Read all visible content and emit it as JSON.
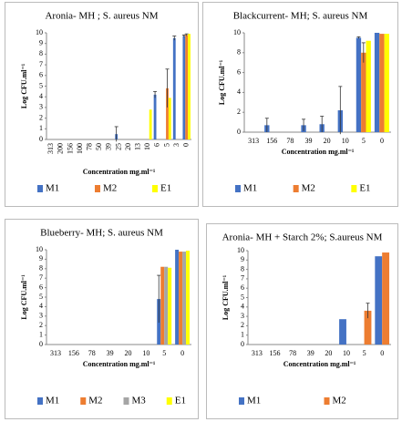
{
  "chart_data": [
    {
      "type": "bar",
      "title": "Aronia- MH ; S. aureus NM",
      "ylabel": "Log CFU.ml⁻¹",
      "xlabel": "Concentration mg.ml⁻¹",
      "categories": [
        "313",
        "200",
        "156",
        "100",
        "78",
        "50",
        "39",
        "25",
        "20",
        "13",
        "10",
        "6",
        "5",
        "3",
        "0"
      ],
      "series": [
        {
          "name": "M1",
          "color": "#4472c4",
          "values": [
            0,
            0,
            0,
            0,
            0,
            0,
            0,
            0.5,
            0,
            0,
            0,
            4.2,
            0,
            9.5,
            9.7
          ],
          "errors": [
            null,
            null,
            null,
            null,
            null,
            null,
            null,
            0.7,
            null,
            null,
            null,
            0.3,
            null,
            0.2,
            0.1
          ]
        },
        {
          "name": "M2",
          "color": "#ed7d31",
          "values": [
            0,
            0,
            0,
            0,
            0,
            0,
            0,
            0,
            0,
            0,
            0,
            0,
            4.8,
            0,
            9.8
          ],
          "errors": [
            null,
            null,
            null,
            null,
            null,
            null,
            null,
            null,
            null,
            null,
            null,
            null,
            1.8,
            null,
            0.1
          ]
        },
        {
          "name": "E1",
          "color": "#ffff00",
          "values": [
            0,
            0,
            0,
            0,
            0,
            0,
            0,
            0,
            0,
            0,
            2.8,
            0,
            3.9,
            0,
            9.9
          ],
          "errors": [
            null,
            null,
            null,
            null,
            null,
            null,
            null,
            null,
            null,
            null,
            null,
            null,
            null,
            null,
            null
          ]
        }
      ],
      "ylim": [
        0,
        10
      ],
      "yticks": [
        0,
        1,
        2,
        3,
        4,
        5,
        6,
        7,
        8,
        9,
        10
      ],
      "grid": false
    },
    {
      "type": "bar",
      "title": "Blackcurrent- MH; S. aureus NM",
      "ylabel": "Log CFU.ml⁻¹",
      "xlabel": "Concentration mg.ml⁻¹",
      "categories": [
        "313",
        "156",
        "78",
        "39",
        "20",
        "10",
        "5",
        "0"
      ],
      "series": [
        {
          "name": "M1",
          "color": "#4472c4",
          "values": [
            0,
            0.7,
            0,
            0.7,
            0.8,
            2.2,
            9.5,
            10
          ],
          "errors": [
            null,
            0.7,
            null,
            0.6,
            0.8,
            2.4,
            0.1,
            null
          ]
        },
        {
          "name": "M2",
          "color": "#ed7d31",
          "values": [
            0,
            0,
            0,
            0,
            0,
            0,
            8.0,
            9.9
          ],
          "errors": [
            null,
            null,
            null,
            null,
            null,
            null,
            1.0,
            null
          ]
        },
        {
          "name": "E1",
          "color": "#ffff00",
          "values": [
            0,
            0,
            0,
            0,
            0,
            0,
            9.2,
            9.9
          ],
          "errors": [
            null,
            null,
            null,
            null,
            null,
            null,
            null,
            null
          ]
        }
      ],
      "ylim": [
        0,
        10
      ],
      "yticks": [
        0,
        2,
        4,
        6,
        8,
        10
      ],
      "grid": false
    },
    {
      "type": "bar",
      "title": "Blueberry- MH; S. aureus NM",
      "ylabel": "Log CFU.ml⁻¹",
      "xlabel": "Concentration mg.ml⁻¹",
      "categories": [
        "313",
        "156",
        "78",
        "39",
        "20",
        "10",
        "5",
        "0"
      ],
      "series": [
        {
          "name": "M1",
          "color": "#4472c4",
          "values": [
            0,
            0,
            0,
            0,
            0,
            0,
            4.8,
            10
          ],
          "errors": [
            null,
            null,
            null,
            null,
            null,
            null,
            2.5,
            null
          ]
        },
        {
          "name": "M2",
          "color": "#ed7d31",
          "values": [
            0,
            0,
            0,
            0,
            0,
            0,
            8.2,
            9.8
          ],
          "errors": [
            null,
            null,
            null,
            null,
            null,
            null,
            null,
            null
          ]
        },
        {
          "name": "M3",
          "color": "#a5a5a5",
          "values": [
            0,
            0,
            0,
            0,
            0,
            0,
            8.2,
            9.8
          ],
          "errors": [
            null,
            null,
            null,
            null,
            null,
            null,
            null,
            null
          ]
        },
        {
          "name": "E1",
          "color": "#ffff00",
          "values": [
            0,
            0,
            0,
            0,
            0,
            0,
            8.1,
            9.9
          ],
          "errors": [
            null,
            null,
            null,
            null,
            null,
            null,
            null,
            null
          ]
        }
      ],
      "ylim": [
        0,
        10
      ],
      "yticks": [
        0,
        1,
        2,
        3,
        4,
        5,
        6,
        7,
        8,
        9,
        10
      ],
      "grid": false
    },
    {
      "type": "bar",
      "title": "Aronia- MH + Starch 2%; S.aureus NM",
      "ylabel": "Log CFU.ml⁻¹",
      "xlabel": "Concentration mg.ml⁻¹",
      "categories": [
        "313",
        "156",
        "78",
        "39",
        "20",
        "10",
        "5",
        "0"
      ],
      "series": [
        {
          "name": "M1",
          "color": "#4472c4",
          "values": [
            0,
            0,
            0,
            0,
            0,
            2.7,
            0,
            9.4
          ],
          "errors": [
            null,
            null,
            null,
            null,
            null,
            null,
            null,
            null
          ]
        },
        {
          "name": "M2",
          "color": "#ed7d31",
          "values": [
            0,
            0,
            0,
            0,
            0,
            0,
            3.6,
            9.8
          ],
          "errors": [
            null,
            null,
            null,
            null,
            null,
            null,
            0.8,
            null
          ]
        }
      ],
      "ylim": [
        0,
        10
      ],
      "yticks": [
        0,
        1,
        2,
        3,
        4,
        5,
        6,
        7,
        8,
        9,
        10
      ],
      "grid": false
    }
  ]
}
